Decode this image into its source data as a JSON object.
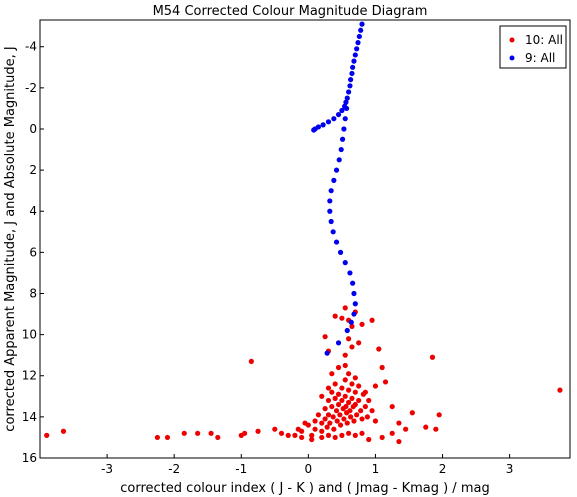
{
  "chart_data": {
    "type": "scatter",
    "title": "M54 Corrected Colour Magnitude Diagram",
    "xlabel": "corrected colour index ( J - K ) and ( Jmag - Kmag ) / mag",
    "ylabel": "corrected Apparent Magnitude, J and Absolute Magnitude, J",
    "xlim": [
      -4.0,
      3.9
    ],
    "ylim": [
      16,
      -5.3
    ],
    "y_inverted": true,
    "xticks": [
      -3,
      -2,
      -1,
      0,
      1,
      2,
      3
    ],
    "yticks": [
      -4,
      -2,
      0,
      2,
      4,
      6,
      8,
      10,
      12,
      14,
      16
    ],
    "legend_position": "top-right",
    "series": [
      {
        "name": "10: All",
        "color": "#ee0000",
        "points": [
          [
            -3.9,
            14.9
          ],
          [
            -3.65,
            14.7
          ],
          [
            -2.25,
            15.0
          ],
          [
            -2.1,
            15.0
          ],
          [
            -1.85,
            14.8
          ],
          [
            -1.65,
            14.8
          ],
          [
            -1.45,
            14.8
          ],
          [
            -1.35,
            15.0
          ],
          [
            -1.0,
            14.9
          ],
          [
            -0.95,
            14.8
          ],
          [
            -0.75,
            14.7
          ],
          [
            -0.5,
            14.6
          ],
          [
            -0.85,
            11.3
          ],
          [
            -0.4,
            14.8
          ],
          [
            -0.3,
            14.9
          ],
          [
            -0.15,
            14.6
          ],
          [
            -0.1,
            14.7
          ],
          [
            -0.05,
            14.3
          ],
          [
            0.0,
            14.4
          ],
          [
            0.05,
            14.9
          ],
          [
            0.1,
            14.2
          ],
          [
            0.1,
            14.6
          ],
          [
            0.15,
            13.9
          ],
          [
            0.2,
            14.3
          ],
          [
            0.2,
            14.7
          ],
          [
            0.25,
            13.6
          ],
          [
            0.25,
            14.1
          ],
          [
            0.28,
            14.5
          ],
          [
            0.3,
            13.2
          ],
          [
            0.3,
            13.9
          ],
          [
            0.32,
            14.3
          ],
          [
            0.35,
            12.8
          ],
          [
            0.35,
            13.5
          ],
          [
            0.37,
            14.0
          ],
          [
            0.38,
            14.6
          ],
          [
            0.4,
            12.4
          ],
          [
            0.4,
            13.1
          ],
          [
            0.42,
            13.7
          ],
          [
            0.43,
            14.2
          ],
          [
            0.45,
            12.9
          ],
          [
            0.45,
            13.4
          ],
          [
            0.47,
            13.9
          ],
          [
            0.48,
            14.4
          ],
          [
            0.5,
            12.6
          ],
          [
            0.5,
            13.2
          ],
          [
            0.52,
            13.6
          ],
          [
            0.53,
            14.1
          ],
          [
            0.55,
            12.2
          ],
          [
            0.55,
            13.0
          ],
          [
            0.56,
            13.5
          ],
          [
            0.57,
            13.8
          ],
          [
            0.58,
            14.3
          ],
          [
            0.6,
            12.7
          ],
          [
            0.6,
            13.3
          ],
          [
            0.62,
            13.7
          ],
          [
            0.63,
            14.0
          ],
          [
            0.65,
            12.4
          ],
          [
            0.65,
            13.1
          ],
          [
            0.67,
            13.5
          ],
          [
            0.68,
            14.2
          ],
          [
            0.7,
            12.8
          ],
          [
            0.7,
            13.4
          ],
          [
            0.72,
            13.9
          ],
          [
            0.75,
            12.5
          ],
          [
            0.75,
            13.2
          ],
          [
            0.78,
            13.7
          ],
          [
            0.8,
            14.1
          ],
          [
            0.82,
            12.9
          ],
          [
            0.85,
            13.5
          ],
          [
            0.88,
            14.0
          ],
          [
            0.9,
            13.2
          ],
          [
            0.95,
            13.7
          ],
          [
            1.0,
            14.2
          ],
          [
            0.2,
            13.0
          ],
          [
            0.3,
            12.6
          ],
          [
            0.35,
            11.9
          ],
          [
            0.45,
            11.6
          ],
          [
            0.55,
            11.5
          ],
          [
            0.6,
            11.9
          ],
          [
            0.7,
            12.1
          ],
          [
            0.4,
            9.1
          ],
          [
            0.5,
            9.2
          ],
          [
            0.55,
            8.7
          ],
          [
            0.6,
            9.3
          ],
          [
            0.7,
            8.9
          ],
          [
            0.65,
            9.6
          ],
          [
            0.8,
            9.5
          ],
          [
            0.95,
            9.3
          ],
          [
            0.6,
            10.2
          ],
          [
            0.65,
            10.6
          ],
          [
            0.25,
            10.1
          ],
          [
            0.3,
            10.8
          ],
          [
            0.55,
            11.0
          ],
          [
            0.75,
            10.4
          ],
          [
            1.05,
            10.7
          ],
          [
            1.1,
            11.6
          ],
          [
            1.15,
            12.3
          ],
          [
            1.25,
            13.5
          ],
          [
            1.35,
            14.3
          ],
          [
            1.45,
            14.6
          ],
          [
            1.55,
            13.8
          ],
          [
            1.35,
            15.2
          ],
          [
            1.25,
            14.8
          ],
          [
            1.1,
            15.0
          ],
          [
            1.85,
            11.1
          ],
          [
            1.95,
            13.9
          ],
          [
            1.9,
            14.6
          ],
          [
            1.0,
            12.5
          ],
          [
            0.85,
            12.8
          ],
          [
            0.9,
            15.1
          ],
          [
            0.8,
            14.8
          ],
          [
            0.7,
            14.9
          ],
          [
            0.6,
            14.8
          ],
          [
            0.5,
            14.9
          ],
          [
            0.4,
            15.0
          ],
          [
            0.3,
            14.9
          ],
          [
            0.2,
            15.0
          ],
          [
            0.05,
            15.1
          ],
          [
            -0.1,
            15.0
          ],
          [
            -0.2,
            14.9
          ],
          [
            1.75,
            14.5
          ],
          [
            3.75,
            12.7
          ]
        ]
      },
      {
        "name": "9: All",
        "color": "#0000ee",
        "points": [
          [
            0.8,
            -5.1
          ],
          [
            0.78,
            -4.8
          ],
          [
            0.76,
            -4.5
          ],
          [
            0.74,
            -4.2
          ],
          [
            0.72,
            -3.9
          ],
          [
            0.7,
            -3.6
          ],
          [
            0.68,
            -3.3
          ],
          [
            0.66,
            -3.0
          ],
          [
            0.65,
            -2.7
          ],
          [
            0.63,
            -2.4
          ],
          [
            0.62,
            -2.1
          ],
          [
            0.6,
            -1.8
          ],
          [
            0.58,
            -1.5
          ],
          [
            0.56,
            -1.3
          ],
          [
            0.54,
            -1.1
          ],
          [
            0.5,
            -0.9
          ],
          [
            0.45,
            -0.7
          ],
          [
            0.38,
            -0.5
          ],
          [
            0.3,
            -0.35
          ],
          [
            0.22,
            -0.2
          ],
          [
            0.15,
            -0.1
          ],
          [
            0.1,
            0.0
          ],
          [
            0.08,
            0.05
          ],
          [
            0.57,
            -1.0
          ],
          [
            0.55,
            -0.5
          ],
          [
            0.53,
            0.0
          ],
          [
            0.51,
            0.5
          ],
          [
            0.49,
            1.0
          ],
          [
            0.46,
            1.5
          ],
          [
            0.42,
            2.0
          ],
          [
            0.38,
            2.5
          ],
          [
            0.34,
            3.0
          ],
          [
            0.32,
            3.5
          ],
          [
            0.32,
            4.0
          ],
          [
            0.34,
            4.5
          ],
          [
            0.37,
            5.0
          ],
          [
            0.42,
            5.5
          ],
          [
            0.48,
            6.0
          ],
          [
            0.55,
            6.5
          ],
          [
            0.62,
            7.0
          ],
          [
            0.66,
            7.5
          ],
          [
            0.68,
            8.0
          ],
          [
            0.7,
            8.5
          ],
          [
            0.68,
            9.0
          ],
          [
            0.64,
            9.4
          ],
          [
            0.58,
            9.8
          ],
          [
            0.45,
            10.4
          ],
          [
            0.28,
            10.9
          ]
        ]
      }
    ]
  },
  "legend": [
    {
      "label": "10: All",
      "color": "#ee0000"
    },
    {
      "label": "9: All",
      "color": "#0000ee"
    }
  ]
}
